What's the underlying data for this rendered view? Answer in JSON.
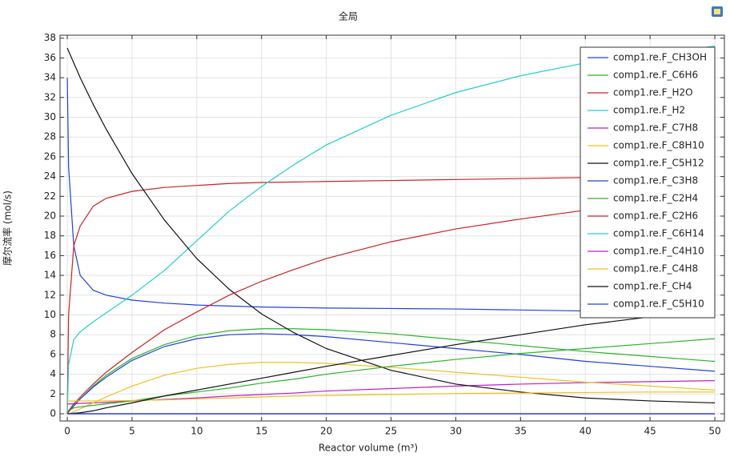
{
  "chart_data": {
    "type": "line",
    "title": "全局",
    "xlabel": "Reactor volume (m³)",
    "ylabel": "摩尔流率 (mol/s)",
    "x": [
      0,
      0.1,
      0.5,
      1,
      2,
      3,
      5,
      7.5,
      10,
      12.5,
      15,
      17.5,
      20,
      25,
      30,
      35,
      40,
      45,
      50
    ],
    "xlim": [
      -0.56,
      50.74
    ],
    "ylim": [
      -0.73,
      38.3
    ],
    "xticks": [
      0,
      5,
      10,
      15,
      20,
      25,
      30,
      35,
      40,
      45,
      50
    ],
    "yticks": [
      0,
      2,
      4,
      6,
      8,
      10,
      12,
      14,
      16,
      18,
      20,
      22,
      24,
      26,
      28,
      30,
      32,
      34,
      36,
      38
    ],
    "grid": true,
    "legend": "upper right",
    "series": [
      {
        "name": "comp1.re.F_CH3OH",
        "color": "#2040e0",
        "values": [
          34,
          25,
          17,
          14,
          12.5,
          12,
          11.5,
          11.2,
          11,
          10.9,
          10.8,
          10.75,
          10.7,
          10.65,
          10.6,
          10.5,
          10.4,
          10.35,
          10.3
        ]
      },
      {
        "name": "comp1.re.F_C6H6",
        "color": "#2ab52a",
        "values": [
          0,
          0.2,
          0.8,
          1.5,
          2.8,
          3.9,
          5.6,
          7.0,
          7.9,
          8.4,
          8.6,
          8.6,
          8.5,
          8.1,
          7.5,
          6.9,
          6.3,
          5.8,
          5.3
        ]
      },
      {
        "name": "comp1.re.F_H2O",
        "color": "#d02020",
        "values": [
          0,
          10,
          17,
          19,
          21,
          21.8,
          22.5,
          22.9,
          23.1,
          23.3,
          23.4,
          23.45,
          23.5,
          23.6,
          23.7,
          23.8,
          23.9,
          23.9,
          24.0
        ]
      },
      {
        "name": "comp1.re.F_H2",
        "color": "#20d0d0",
        "values": [
          0,
          5,
          7.5,
          8.3,
          9.3,
          10.2,
          12.0,
          14.5,
          17.5,
          20.5,
          23.0,
          25.2,
          27.2,
          30.2,
          32.5,
          34.2,
          35.5,
          36.4,
          37.2
        ]
      },
      {
        "name": "comp1.re.F_C7H8",
        "color": "#c020c0",
        "values": [
          1.0,
          1.0,
          1.0,
          1.05,
          1.1,
          1.15,
          1.3,
          1.45,
          1.6,
          1.8,
          1.95,
          2.1,
          2.3,
          2.55,
          2.8,
          3.0,
          3.15,
          3.25,
          3.35
        ]
      },
      {
        "name": "comp1.re.F_C8H10",
        "color": "#f0c020",
        "values": [
          0,
          0,
          0.2,
          0.5,
          1.1,
          1.7,
          2.8,
          3.9,
          4.6,
          5.0,
          5.2,
          5.2,
          5.1,
          4.7,
          4.2,
          3.7,
          3.2,
          2.8,
          2.4
        ]
      },
      {
        "name": "comp1.re.F_C5H12",
        "color": "#111111",
        "values": [
          37,
          36.7,
          35.5,
          34,
          31.3,
          28.8,
          24.3,
          19.6,
          15.7,
          12.6,
          10.1,
          8.2,
          6.6,
          4.4,
          3.0,
          2.2,
          1.6,
          1.3,
          1.1
        ]
      },
      {
        "name": "comp1.re.F_C3H8",
        "color": "#2040e0",
        "values": [
          0,
          0.2,
          0.8,
          1.5,
          2.7,
          3.7,
          5.4,
          6.8,
          7.6,
          8.0,
          8.1,
          8.0,
          7.8,
          7.2,
          6.6,
          6.0,
          5.3,
          4.8,
          4.3
        ]
      },
      {
        "name": "comp1.re.F_C2H4",
        "color": "#2ab52a",
        "values": [
          0,
          0.3,
          0.6,
          0.7,
          0.85,
          1.0,
          1.3,
          1.8,
          2.2,
          2.6,
          3.1,
          3.5,
          4.0,
          4.8,
          5.5,
          6.1,
          6.6,
          7.1,
          7.6
        ]
      },
      {
        "name": "comp1.re.F_C2H6",
        "color": "#d02020",
        "values": [
          0,
          0.3,
          1.0,
          1.7,
          3.0,
          4.2,
          6.2,
          8.5,
          10.3,
          12.0,
          13.4,
          14.6,
          15.7,
          17.4,
          18.7,
          19.7,
          20.6,
          21.2,
          21.7
        ]
      },
      {
        "name": "comp1.re.F_C6H14",
        "color": "#20d0d0",
        "values": [
          0,
          0,
          0,
          0,
          0,
          0,
          0,
          0,
          0,
          0,
          0,
          0,
          0,
          0,
          0,
          0,
          0,
          0,
          0
        ]
      },
      {
        "name": "comp1.re.F_C4H10",
        "color": "#c020c0",
        "values": [
          0,
          0,
          0,
          0,
          0,
          0,
          0,
          0,
          0,
          0,
          0,
          0,
          0,
          0,
          0,
          0,
          0,
          0,
          0
        ]
      },
      {
        "name": "comp1.re.F_C4H8",
        "color": "#f0c020",
        "values": [
          1.3,
          1.3,
          1.3,
          1.3,
          1.3,
          1.3,
          1.35,
          1.4,
          1.5,
          1.6,
          1.7,
          1.8,
          1.85,
          1.95,
          2.05,
          2.1,
          2.15,
          2.2,
          2.2
        ]
      },
      {
        "name": "comp1.re.F_CH4",
        "color": "#111111",
        "values": [
          0,
          0,
          0.05,
          0.1,
          0.3,
          0.6,
          1.1,
          1.8,
          2.4,
          3.0,
          3.6,
          4.2,
          4.8,
          5.9,
          7.0,
          8.0,
          9.0,
          9.8,
          10.6
        ]
      },
      {
        "name": "comp1.re.F_C5H10",
        "color": "#2040e0",
        "values": [
          0,
          0,
          0,
          0,
          0,
          0,
          0,
          0,
          0,
          0,
          0,
          0,
          0,
          0,
          0,
          0,
          0,
          0,
          0
        ]
      }
    ]
  }
}
